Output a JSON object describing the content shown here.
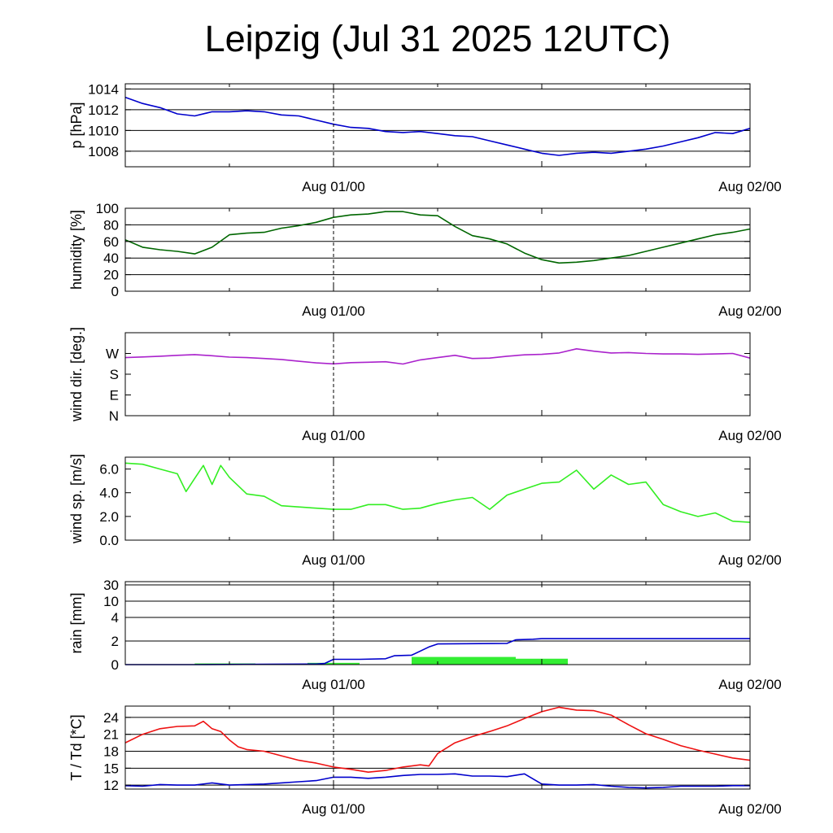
{
  "title": "Leipzig (Jul 31 2025 12UTC)",
  "x_tick_labels": [
    "Aug 01/00",
    "Aug 02/00"
  ],
  "chart_data": [
    {
      "type": "line",
      "ylabel": "p [hPa]",
      "ylim": [
        1006.5,
        1014.5
      ],
      "yticks": [
        1008,
        1010,
        1012,
        1014
      ],
      "ytick_labels": [
        "1008",
        "1010",
        "1012",
        "1014"
      ],
      "grid": true,
      "series": [
        {
          "color": "#0000cc",
          "x": [
            0,
            1,
            2,
            3,
            4,
            5,
            6,
            7,
            8,
            9,
            10,
            11,
            12,
            13,
            14,
            15,
            16,
            17,
            18,
            19,
            20,
            21,
            22,
            23,
            24,
            25,
            26,
            27,
            28,
            29,
            30,
            31,
            32,
            33,
            34,
            35,
            36
          ],
          "y": [
            1013.2,
            1012.6,
            1012.2,
            1011.6,
            1011.4,
            1011.8,
            1011.8,
            1011.9,
            1011.8,
            1011.5,
            1011.4,
            1011.0,
            1010.6,
            1010.3,
            1010.2,
            1009.9,
            1009.8,
            1009.9,
            1009.7,
            1009.5,
            1009.4,
            1009.0,
            1008.6,
            1008.2,
            1007.8,
            1007.6,
            1007.8,
            1007.9,
            1007.8,
            1008.0,
            1008.2,
            1008.5,
            1008.9,
            1009.3,
            1009.8,
            1009.7,
            1010.2
          ]
        }
      ]
    },
    {
      "type": "line",
      "ylabel": "humidity [%]",
      "ylim": [
        0,
        100
      ],
      "yticks": [
        0,
        20,
        40,
        60,
        80,
        100
      ],
      "ytick_labels": [
        "0",
        "20",
        "40",
        "60",
        "80",
        "100"
      ],
      "grid": true,
      "series": [
        {
          "color": "#006600",
          "x": [
            0,
            1,
            2,
            3,
            4,
            5,
            6,
            7,
            8,
            9,
            10,
            11,
            12,
            13,
            14,
            15,
            16,
            17,
            18,
            19,
            20,
            21,
            22,
            23,
            24,
            25,
            26,
            27,
            28,
            29,
            30,
            31,
            32,
            33,
            34,
            35,
            36
          ],
          "y": [
            62,
            53,
            50,
            48,
            45,
            53,
            68,
            70,
            71,
            76,
            79,
            83,
            89,
            92,
            93,
            96,
            96,
            92,
            91,
            78,
            67,
            63,
            57,
            46,
            38,
            34,
            35,
            37,
            40,
            43,
            48,
            53,
            58,
            63,
            68,
            71,
            75
          ]
        }
      ]
    },
    {
      "type": "line",
      "ylabel": "wind dir. [deg.]",
      "ylim": [
        0,
        360
      ],
      "yticks": [
        0,
        90,
        180,
        270
      ],
      "ytick_labels": [
        "N",
        "E",
        "S",
        "W"
      ],
      "grid": false,
      "series": [
        {
          "color": "#aa22cc",
          "x": [
            0,
            1,
            2,
            3,
            4,
            5,
            6,
            7,
            8,
            9,
            10,
            11,
            12,
            13,
            14,
            15,
            16,
            17,
            18,
            19,
            20,
            21,
            22,
            23,
            24,
            25,
            26,
            27,
            28,
            29,
            30,
            31,
            32,
            33,
            34,
            35,
            36
          ],
          "y": [
            252,
            255,
            258,
            262,
            265,
            260,
            254,
            252,
            248,
            244,
            236,
            229,
            225,
            230,
            232,
            234,
            224,
            242,
            252,
            262,
            248,
            250,
            258,
            264,
            266,
            272,
            290,
            280,
            272,
            274,
            270,
            268,
            268,
            266,
            268,
            270,
            250
          ]
        }
      ]
    },
    {
      "type": "line",
      "ylabel": "wind sp. [m/s]",
      "ylim": [
        0,
        7
      ],
      "yticks": [
        0,
        2,
        4,
        6
      ],
      "ytick_labels": [
        "0.0",
        "2.0",
        "4.0",
        "6.0"
      ],
      "grid": false,
      "series": [
        {
          "color": "#33ee22",
          "x": [
            0,
            1,
            2,
            3,
            3.5,
            4,
            4.5,
            5,
            5.5,
            6,
            7,
            8,
            9,
            10,
            11,
            12,
            13,
            14,
            15,
            16,
            17,
            18,
            19,
            20,
            21,
            22,
            23,
            24,
            25,
            26,
            27,
            28,
            29,
            30,
            31,
            32,
            33,
            34,
            35,
            36
          ],
          "y": [
            6.5,
            6.4,
            6.0,
            5.6,
            4.1,
            5.2,
            6.3,
            4.7,
            6.3,
            5.3,
            3.9,
            3.7,
            2.9,
            2.8,
            2.7,
            2.6,
            2.6,
            3.0,
            3.0,
            2.6,
            2.7,
            3.1,
            3.4,
            3.6,
            2.6,
            3.8,
            4.3,
            4.8,
            4.9,
            5.9,
            4.3,
            5.5,
            4.7,
            4.9,
            3.0,
            2.4,
            2.0,
            2.3,
            1.6,
            1.5
          ]
        }
      ]
    },
    {
      "type": "bar+line",
      "ylabel": "rain [mm]",
      "ylim": [
        0,
        30
      ],
      "yticks": [
        0,
        2,
        4,
        10,
        30
      ],
      "ytick_labels": [
        "0",
        "2",
        "4",
        "10",
        "30"
      ],
      "grid": true,
      "bars": {
        "color": "#33ee33",
        "intervals": [
          {
            "x0": 4,
            "x1": 7.5,
            "value": 0.1
          },
          {
            "x0": 10.5,
            "x1": 13.5,
            "value": 0.15
          },
          {
            "x0": 16.5,
            "x1": 22.5,
            "value": 0.65
          },
          {
            "x0": 22.5,
            "x1": 25.5,
            "value": 0.5
          }
        ]
      },
      "series": [
        {
          "color": "#0000cc",
          "x": [
            0,
            4,
            8,
            11,
            11.5,
            12,
            13.5,
            15,
            15.5,
            16.5,
            17.5,
            18,
            22,
            22.5,
            23.5,
            24,
            36
          ],
          "y": [
            0,
            0,
            0.03,
            0.05,
            0.1,
            0.45,
            0.45,
            0.5,
            0.75,
            0.8,
            1.5,
            1.75,
            1.8,
            2.1,
            2.15,
            2.2,
            2.2
          ]
        }
      ]
    },
    {
      "type": "line",
      "ylabel": "T / Td [*C]",
      "ylim": [
        11.3,
        26
      ],
      "yticks": [
        12,
        15,
        18,
        21,
        24
      ],
      "ytick_labels": [
        "12",
        "15",
        "18",
        "21",
        "24"
      ],
      "grid": true,
      "series": [
        {
          "color": "#ee1111",
          "x": [
            0,
            1,
            2,
            3,
            4,
            4.5,
            5,
            5.5,
            6,
            6.5,
            7,
            8,
            9,
            10,
            11,
            12,
            13,
            14,
            15,
            16,
            17,
            17.5,
            18,
            19,
            20,
            21,
            22,
            23,
            24,
            25,
            26,
            27,
            28,
            29,
            30,
            31,
            32,
            33,
            34,
            35,
            36
          ],
          "y": [
            19.5,
            21.0,
            22.0,
            22.4,
            22.5,
            23.3,
            22.0,
            21.5,
            20.0,
            18.8,
            18.3,
            18.0,
            17.2,
            16.4,
            15.9,
            15.2,
            14.8,
            14.3,
            14.6,
            15.2,
            15.6,
            15.4,
            17.6,
            19.5,
            20.6,
            21.5,
            22.5,
            23.8,
            25.0,
            25.8,
            25.3,
            25.2,
            24.4,
            22.7,
            21.1,
            20.1,
            19.0,
            18.2,
            17.5,
            16.8,
            16.4
          ]
        },
        {
          "color": "#0000cc",
          "x": [
            0,
            1,
            2,
            3,
            4,
            5,
            6,
            7,
            8,
            9,
            10,
            11,
            12,
            13,
            14,
            15,
            16,
            17,
            18,
            19,
            20,
            21,
            22,
            23,
            24,
            25,
            26,
            27,
            28,
            29,
            30,
            31,
            32,
            33,
            34,
            35,
            36
          ],
          "y": [
            11.9,
            11.8,
            12.1,
            12.0,
            12.0,
            12.4,
            12.0,
            12.1,
            12.2,
            12.4,
            12.6,
            12.8,
            13.4,
            13.4,
            13.2,
            13.4,
            13.7,
            13.9,
            13.9,
            14.0,
            13.6,
            13.6,
            13.5,
            14.0,
            12.2,
            12.0,
            12.0,
            12.1,
            11.8,
            11.6,
            11.5,
            11.6,
            11.8,
            11.8,
            11.8,
            11.9,
            11.9
          ]
        }
      ]
    }
  ]
}
